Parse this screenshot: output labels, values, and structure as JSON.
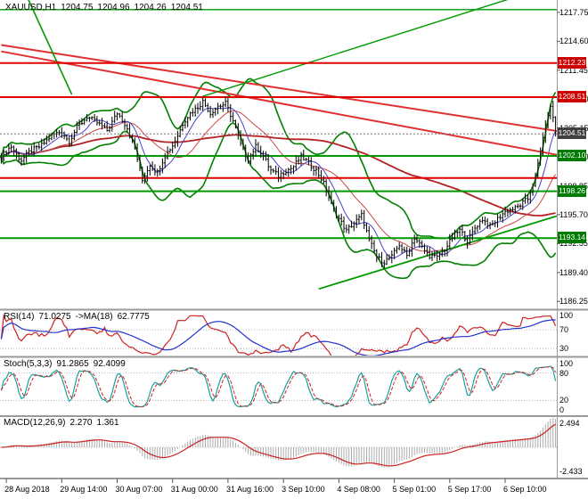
{
  "header": {
    "symbol": "XAUUSD,H1",
    "open": "1204.75",
    "high": "1204.96",
    "low": "1204.26",
    "close": "1204.51"
  },
  "price_axis": {
    "ticks": [
      "1217.75",
      "1214.60",
      "1211.45",
      "1208.30",
      "1205.15",
      "1202.00",
      "1198.85",
      "1195.70",
      "1192.55",
      "1189.40",
      "1186.25"
    ],
    "badges": [
      {
        "label": "1212.23",
        "type": "resistance"
      },
      {
        "label": "1208.51",
        "type": "resistance"
      },
      {
        "label": "1204.51",
        "type": "current"
      },
      {
        "label": "1202.10",
        "type": "support"
      },
      {
        "label": "1198.26",
        "type": "support"
      },
      {
        "label": "1193.14",
        "type": "support"
      }
    ]
  },
  "time_axis": {
    "labels": [
      "28 Aug 2018",
      "29 Aug 14:00",
      "30 Aug 07:00",
      "31 Aug 00:00",
      "31 Aug 16:00",
      "3 Sep 10:00",
      "4 Sep 08:00",
      "5 Sep 01:00",
      "5 Sep 17:00",
      "6 Sep 10:00"
    ]
  },
  "panes": {
    "rsi": {
      "name": "RSI(14)",
      "value": "71.0275",
      "ma_name": "->MA(18)",
      "ma_value": "62.7775",
      "scale": [
        "100",
        "70",
        "30"
      ],
      "levels": [
        70,
        30
      ]
    },
    "stoch": {
      "name": "Stoch(5,3,3)",
      "value_k": "91.2865",
      "value_d": "92.4099",
      "scale": [
        "100",
        "80",
        "20",
        "0"
      ],
      "levels": [
        80,
        20
      ]
    },
    "macd": {
      "name": "MACD(12,26,9)",
      "value_macd": "2.270",
      "value_signal": "1.361",
      "scale": [
        "2.494",
        "-2.433"
      ]
    }
  },
  "colors": {
    "background": "#FFFFFF",
    "bars": "#000000",
    "bollinger": "#008000",
    "ma_fast": "#4444CC",
    "ma_mid": "#CC4444",
    "ma_slow": "#B22222",
    "trend_red": "#E03030",
    "level_red": "#E00000",
    "level_green": "#009900",
    "rsi": "#CC2222",
    "rsi_ma": "#2233CC",
    "stoch_k": "#18A0A0",
    "stoch_d": "#D02020",
    "macd_hist": "#ABABAB",
    "macd_signal": "#CC2222",
    "separator": "#9A9A9A",
    "axis_text": "#000000",
    "badge_current": "#404040",
    "badge_red": "#CC0000",
    "badge_green": "#007A00",
    "grid_dotted": "#B8B8B8",
    "bid_line": "#777777"
  },
  "chart_data": {
    "type": "ohlc-bars",
    "symbol": "XAUUSD",
    "timeframe": "H1",
    "title": "XAUUSD,H1",
    "last_bar": {
      "open": 1204.75,
      "high": 1204.96,
      "low": 1204.26,
      "close": 1204.51
    },
    "bars": 221,
    "current_price": 1204.51,
    "axis_range": {
      "p_top": 1219.1,
      "p_bottom": 1185.4
    },
    "time_tick_indices": [
      2,
      24,
      46,
      68,
      90,
      112,
      134,
      156,
      178,
      200
    ],
    "price_anchors": [
      [
        0,
        1202.0
      ],
      [
        4,
        1203.1
      ],
      [
        8,
        1201.7
      ],
      [
        12,
        1202.6
      ],
      [
        16,
        1203.4
      ],
      [
        20,
        1204.2
      ],
      [
        24,
        1204.9
      ],
      [
        27,
        1203.6
      ],
      [
        30,
        1205.1
      ],
      [
        34,
        1206.5
      ],
      [
        38,
        1205.6
      ],
      [
        42,
        1205.0
      ],
      [
        46,
        1206.7
      ],
      [
        50,
        1205.2
      ],
      [
        53,
        1203.0
      ],
      [
        56,
        1199.3
      ],
      [
        59,
        1201.2
      ],
      [
        62,
        1200.4
      ],
      [
        65,
        1202.0
      ],
      [
        68,
        1203.3
      ],
      [
        72,
        1205.6
      ],
      [
        76,
        1207.0
      ],
      [
        80,
        1208.1
      ],
      [
        83,
        1206.6
      ],
      [
        86,
        1207.6
      ],
      [
        89,
        1207.9
      ],
      [
        92,
        1205.8
      ],
      [
        95,
        1203.4
      ],
      [
        98,
        1201.8
      ],
      [
        101,
        1203.0
      ],
      [
        104,
        1202.2
      ],
      [
        107,
        1200.6
      ],
      [
        110,
        1199.8
      ],
      [
        113,
        1200.6
      ],
      [
        116,
        1201.0
      ],
      [
        119,
        1201.9
      ],
      [
        122,
        1201.4
      ],
      [
        125,
        1200.6
      ],
      [
        128,
        1199.0
      ],
      [
        131,
        1196.9
      ],
      [
        134,
        1195.3
      ],
      [
        137,
        1193.8
      ],
      [
        140,
        1194.9
      ],
      [
        143,
        1195.7
      ],
      [
        146,
        1192.8
      ],
      [
        149,
        1191.2
      ],
      [
        152,
        1190.6
      ],
      [
        155,
        1191.0
      ],
      [
        158,
        1192.5
      ],
      [
        161,
        1191.3
      ],
      [
        164,
        1193.1
      ],
      [
        167,
        1192.2
      ],
      [
        170,
        1191.3
      ],
      [
        173,
        1190.9
      ],
      [
        176,
        1192.0
      ],
      [
        179,
        1193.3
      ],
      [
        182,
        1193.9
      ],
      [
        185,
        1192.9
      ],
      [
        188,
        1194.3
      ],
      [
        191,
        1195.1
      ],
      [
        194,
        1194.5
      ],
      [
        197,
        1195.3
      ],
      [
        200,
        1195.9
      ],
      [
        203,
        1196.4
      ],
      [
        206,
        1196.8
      ],
      [
        209,
        1197.3
      ],
      [
        212,
        1199.9
      ],
      [
        214,
        1202.7
      ],
      [
        216,
        1205.5
      ],
      [
        218,
        1207.5
      ],
      [
        219,
        1206.3
      ],
      [
        220,
        1204.51
      ]
    ],
    "hlines": [
      {
        "price": 1218.05,
        "color": "#009900",
        "width": 1.4
      },
      {
        "price": 1212.23,
        "color": "#E00000",
        "width": 2
      },
      {
        "price": 1208.51,
        "color": "#E00000",
        "width": 2
      },
      {
        "price": 1202.1,
        "color": "#009900",
        "width": 2
      },
      {
        "price": 1199.7,
        "color": "#E00000",
        "width": 2
      },
      {
        "price": 1198.26,
        "color": "#009900",
        "width": 2
      },
      {
        "price": 1193.14,
        "color": "#009900",
        "width": 2
      }
    ],
    "trendlines": [
      {
        "from": [
          0,
          1214.2
        ],
        "to": [
          221,
          1204.8
        ],
        "color": "#E03030",
        "width": 2
      },
      {
        "from": [
          0,
          1213.5
        ],
        "to": [
          221,
          1202.2
        ],
        "color": "#E03030",
        "width": 2
      },
      {
        "from": [
          10,
          1219.6
        ],
        "to": [
          28,
          1208.8
        ],
        "color": "#009900",
        "width": 1.6
      },
      {
        "from": [
          126,
          1187.6
        ],
        "to": [
          221,
          1195.6
        ],
        "color": "#009900",
        "width": 1.8
      },
      {
        "from": [
          80,
          1208.6
        ],
        "to": [
          206,
          1219.6
        ],
        "color": "#009900",
        "width": 1.4
      }
    ],
    "indicators": {
      "bollinger_period": 20,
      "bollinger_dev": 2.2,
      "ma_fast": 8,
      "ma_mid": 21,
      "ma_slow": 110,
      "rsi_period": 14,
      "rsi_ma_period": 18,
      "stoch": [
        5,
        3,
        3
      ],
      "macd": [
        12,
        26,
        9
      ]
    }
  }
}
